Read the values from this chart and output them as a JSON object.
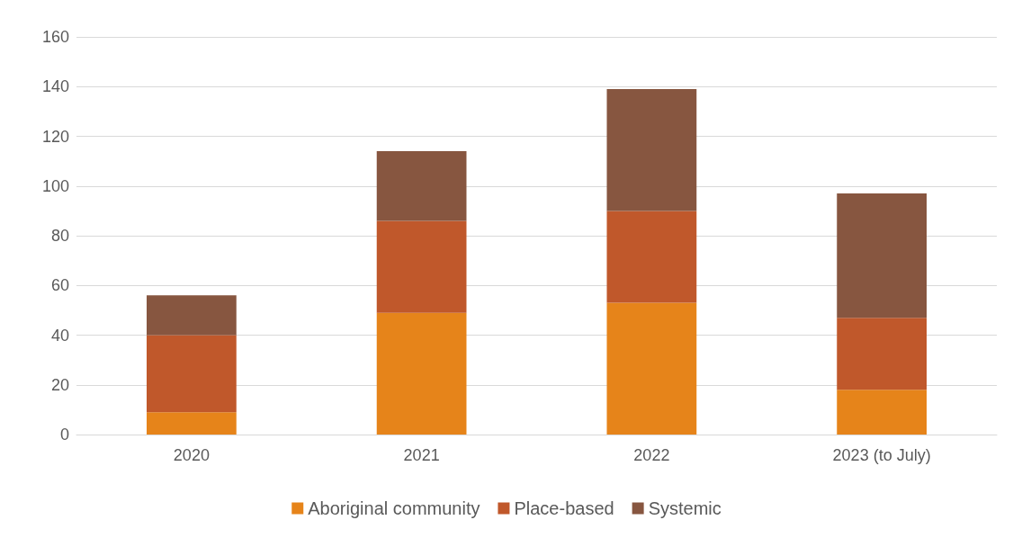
{
  "chart_data": {
    "type": "bar",
    "stacked": true,
    "categories": [
      "2020",
      "2021",
      "2022",
      "2023 (to July)"
    ],
    "series": [
      {
        "name": "Aboriginal community",
        "color": "#e6841a",
        "values": [
          9,
          49,
          53,
          18
        ]
      },
      {
        "name": "Place-based",
        "color": "#c0582b",
        "values": [
          31,
          37,
          37,
          29
        ]
      },
      {
        "name": "Systemic",
        "color": "#875640",
        "values": [
          16,
          28,
          49,
          50
        ]
      }
    ],
    "ylim": [
      0,
      160
    ],
    "yticks": [
      0,
      20,
      40,
      60,
      80,
      100,
      120,
      140,
      160
    ],
    "grid": "y",
    "legend": "bottom"
  }
}
